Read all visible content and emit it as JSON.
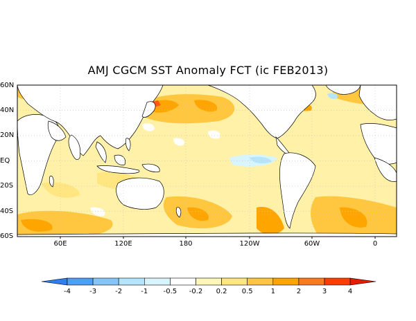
{
  "title": "AMJ CGCM SST Anomaly FCT (ic FEB2013)",
  "lat_labels": [
    "60N",
    "40N",
    "20N",
    "EQ",
    "20S",
    "40S",
    "60S"
  ],
  "lon_labels": [
    "60E",
    "120E",
    "180",
    "120W",
    "60W",
    "0"
  ],
  "colorbar": {
    "labels": [
      "-4",
      "-3",
      "-2",
      "-1",
      "-0.5",
      "-0.2",
      "0.2",
      "0.5",
      "1",
      "2",
      "3",
      "4"
    ],
    "colors": [
      "#2d7ff0",
      "#4f9ff5",
      "#86c5f8",
      "#b5e5fb",
      "#d8f4fd",
      "#ffffff",
      "#fff6b8",
      "#ffe680",
      "#ffc640",
      "#ffa500",
      "#ff7a1a",
      "#ff3d00",
      "#e81a00"
    ]
  },
  "map": {
    "ocean_base": "#fff1a8",
    "land": "#ffffff",
    "gridline": "#c8c8c8"
  }
}
